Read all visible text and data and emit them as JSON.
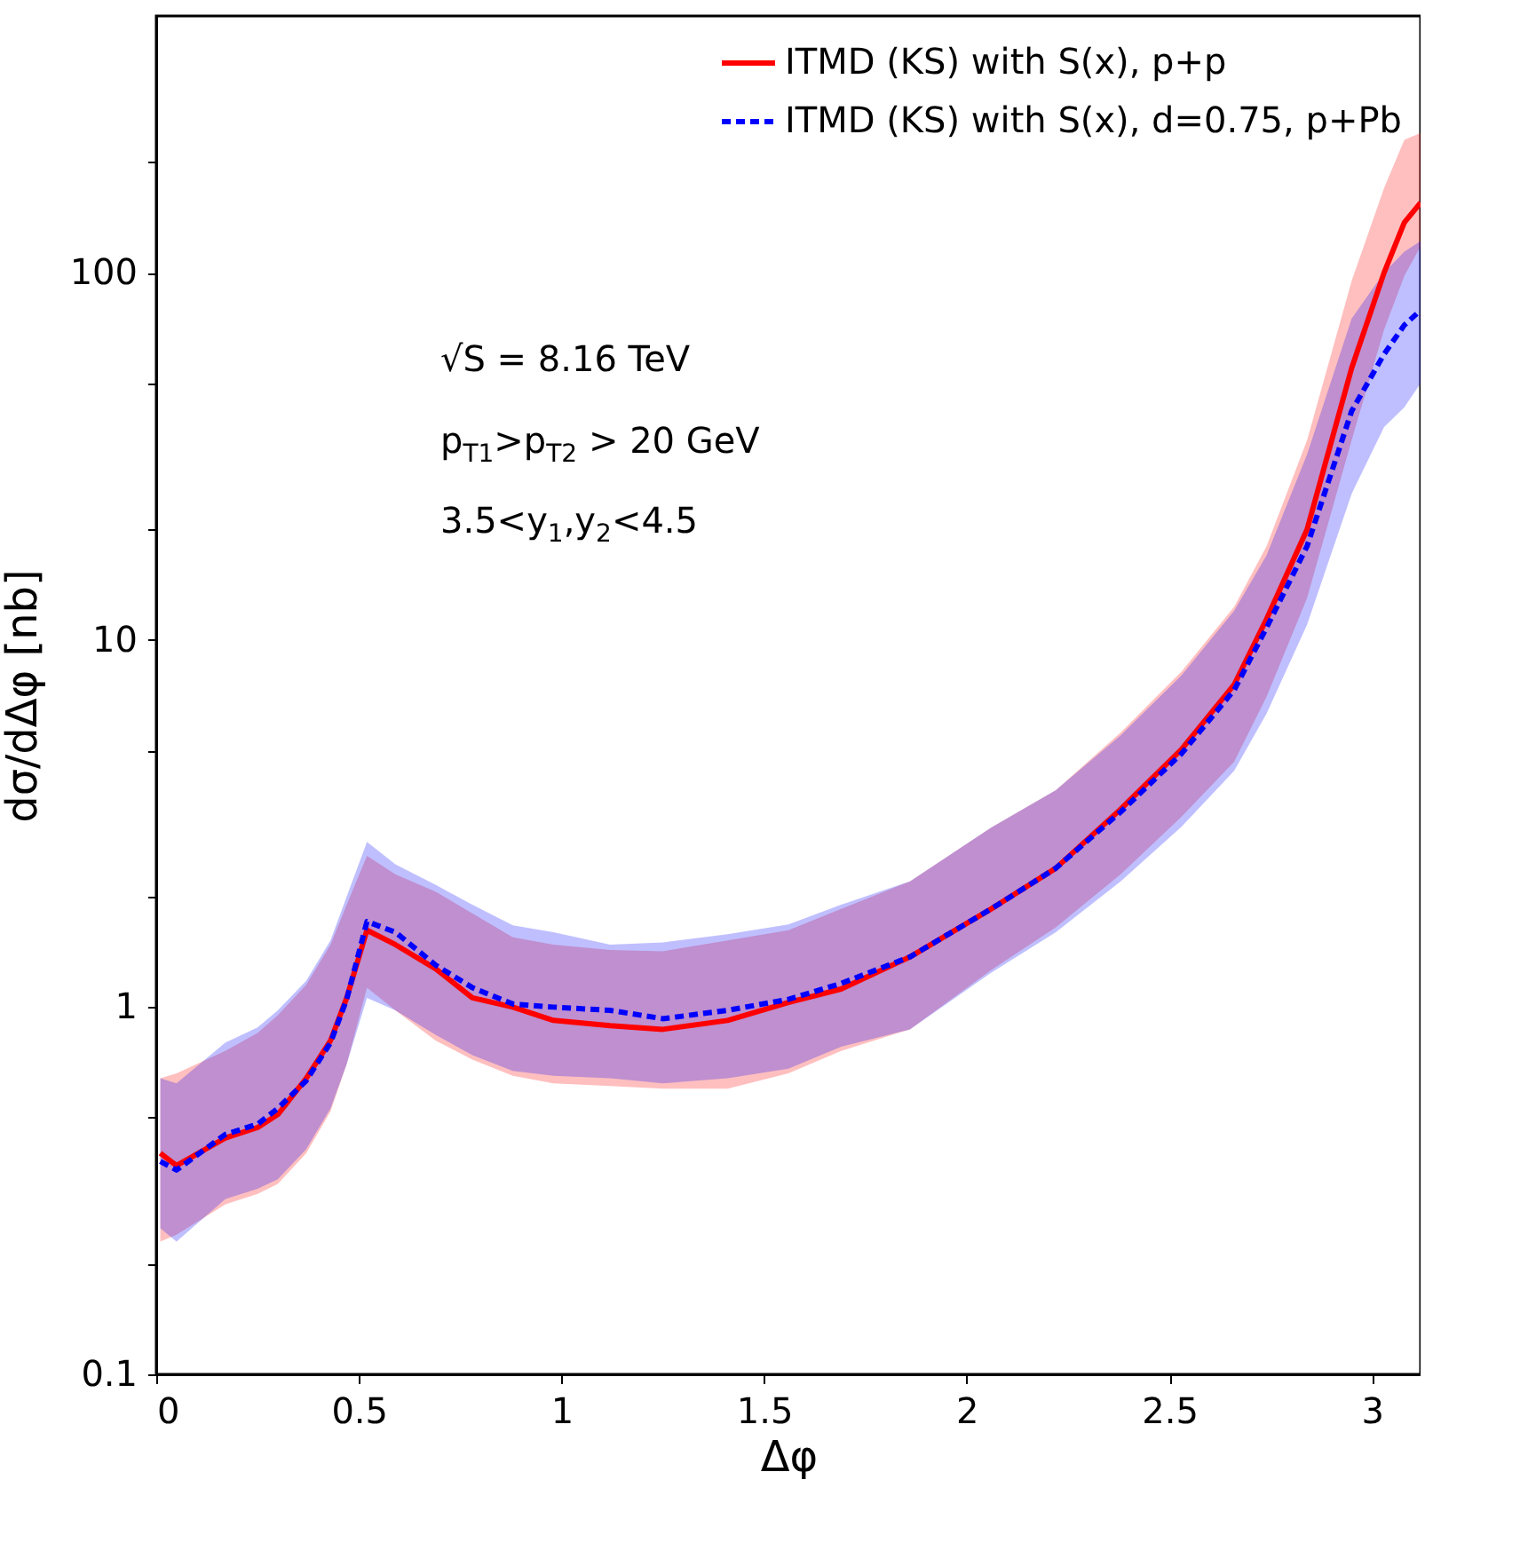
{
  "chart_data": {
    "type": "line",
    "xlabel": "Δφ",
    "ylabel": "dσ/dΔφ [nb]",
    "log": "y",
    "grid": false,
    "legend": "top right",
    "annotations": [
      "√S = 8.16 TeV",
      "p$_{T1}$>p$_{T2}$ > 20 GeV",
      "3.5<y$_{1}$,y$_{2}$<4.5"
    ],
    "x": [
      0.01,
      0.05,
      0.17,
      0.25,
      0.3,
      0.37,
      0.43,
      0.47,
      0.52,
      0.59,
      0.69,
      0.78,
      0.88,
      0.98,
      1.12,
      1.25,
      1.41,
      1.56,
      1.69,
      1.86,
      2.06,
      2.22,
      2.38,
      2.53,
      2.66,
      2.74,
      2.84,
      2.95,
      3.03,
      3.08,
      3.12
    ],
    "xlim": [
      0,
      3.12
    ],
    "xticks": [
      0,
      0.5,
      1,
      1.5,
      2,
      2.5,
      3
    ],
    "ylim": [
      0.1,
      500
    ],
    "yticks": [
      0.1,
      {
        "value": 0.2,
        "label": null
      },
      {
        "value": 0.5,
        "label": null
      },
      1,
      {
        "value": 2,
        "label": null
      },
      {
        "value": 5,
        "label": null
      },
      10,
      {
        "value": 20,
        "label": null
      },
      {
        "value": 50,
        "label": null
      },
      100,
      {
        "value": 200,
        "label": null
      }
    ],
    "series": [
      {
        "name": "ITMD (KS) with S(x), p+p",
        "color": "#ff0000",
        "line_style": "solid",
        "values": [
          0.4,
          0.37,
          0.44,
          0.47,
          0.51,
          0.64,
          0.81,
          1.06,
          1.62,
          1.48,
          1.27,
          1.06,
          1.0,
          0.92,
          0.89,
          0.87,
          0.92,
          1.03,
          1.12,
          1.37,
          1.85,
          2.39,
          3.46,
          5.03,
          7.55,
          11.4,
          20,
          55,
          100,
          137,
          155
        ],
        "upper": [
          0.64,
          0.66,
          0.76,
          0.85,
          0.95,
          1.15,
          1.48,
          1.9,
          2.58,
          2.3,
          2.06,
          1.8,
          1.55,
          1.48,
          1.43,
          1.42,
          1.52,
          1.62,
          1.85,
          2.2,
          3.08,
          3.9,
          5.6,
          8.2,
          12.3,
          18,
          35,
          95,
          170,
          230,
          240
        ],
        "lower": [
          0.23,
          0.24,
          0.29,
          0.31,
          0.33,
          0.4,
          0.52,
          0.7,
          1.13,
          0.98,
          0.81,
          0.72,
          0.65,
          0.62,
          0.61,
          0.6,
          0.6,
          0.66,
          0.76,
          0.87,
          1.26,
          1.65,
          2.3,
          3.3,
          4.66,
          7,
          13,
          35,
          70,
          98,
          118
        ]
      },
      {
        "name": "ITMD (KS) with S(x), d=0.75, p+Pb",
        "color": "#0000ff",
        "line_style": "dashed",
        "values": [
          0.38,
          0.36,
          0.45,
          0.48,
          0.53,
          0.63,
          0.8,
          1.05,
          1.71,
          1.6,
          1.3,
          1.13,
          1.02,
          1.0,
          0.98,
          0.93,
          0.98,
          1.05,
          1.16,
          1.37,
          1.85,
          2.39,
          3.4,
          4.9,
          7.3,
          10.8,
          18,
          42,
          60,
          72,
          79
        ],
        "upper": [
          0.64,
          0.62,
          0.8,
          0.88,
          0.98,
          1.18,
          1.52,
          2.0,
          2.82,
          2.45,
          2.15,
          1.9,
          1.67,
          1.6,
          1.48,
          1.5,
          1.58,
          1.68,
          1.9,
          2.2,
          3.08,
          3.9,
          5.5,
          8,
          12,
          17,
          32,
          75,
          100,
          114,
          122
        ],
        "lower": [
          0.25,
          0.23,
          0.3,
          0.32,
          0.34,
          0.41,
          0.53,
          0.7,
          1.06,
          0.98,
          0.84,
          0.74,
          0.67,
          0.65,
          0.64,
          0.62,
          0.64,
          0.68,
          0.78,
          0.87,
          1.24,
          1.6,
          2.2,
          3.1,
          4.4,
          6.3,
          11,
          25,
          38,
          43,
          50
        ]
      }
    ]
  }
}
